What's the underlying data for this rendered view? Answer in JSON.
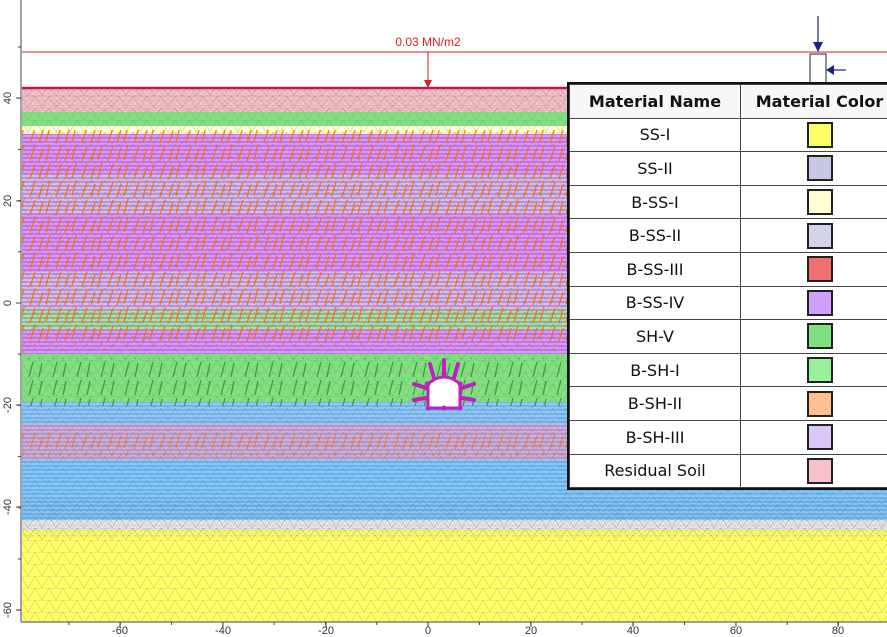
{
  "load_label": "0.03 MN/m2",
  "y_ticks": [
    "40",
    "20",
    "0",
    "-20",
    "-40",
    "-60"
  ],
  "x_ticks": [
    "-60",
    "-40",
    "-20",
    "0",
    "20",
    "40",
    "60",
    "80"
  ],
  "legend": {
    "header_name": "Material Name",
    "header_color": "Material Color",
    "rows": [
      {
        "name": "SS-I",
        "color": "#ffff66"
      },
      {
        "name": "SS-II",
        "color": "#c8c8e6"
      },
      {
        "name": "B-SS-I",
        "color": "#ffffd2"
      },
      {
        "name": "B-SS-II",
        "color": "#d2d2e8"
      },
      {
        "name": "B-SS-III",
        "color": "#f07070"
      },
      {
        "name": "B-SS-IV",
        "color": "#d2a0f8"
      },
      {
        "name": "SH-V",
        "color": "#80e080"
      },
      {
        "name": "B-SH-I",
        "color": "#98f098"
      },
      {
        "name": "B-SH-II",
        "color": "#ffc090"
      },
      {
        "name": "B-SH-III",
        "color": "#dcc8f8"
      },
      {
        "name": "Residual Soil",
        "color": "#f8c0c8"
      }
    ]
  }
}
